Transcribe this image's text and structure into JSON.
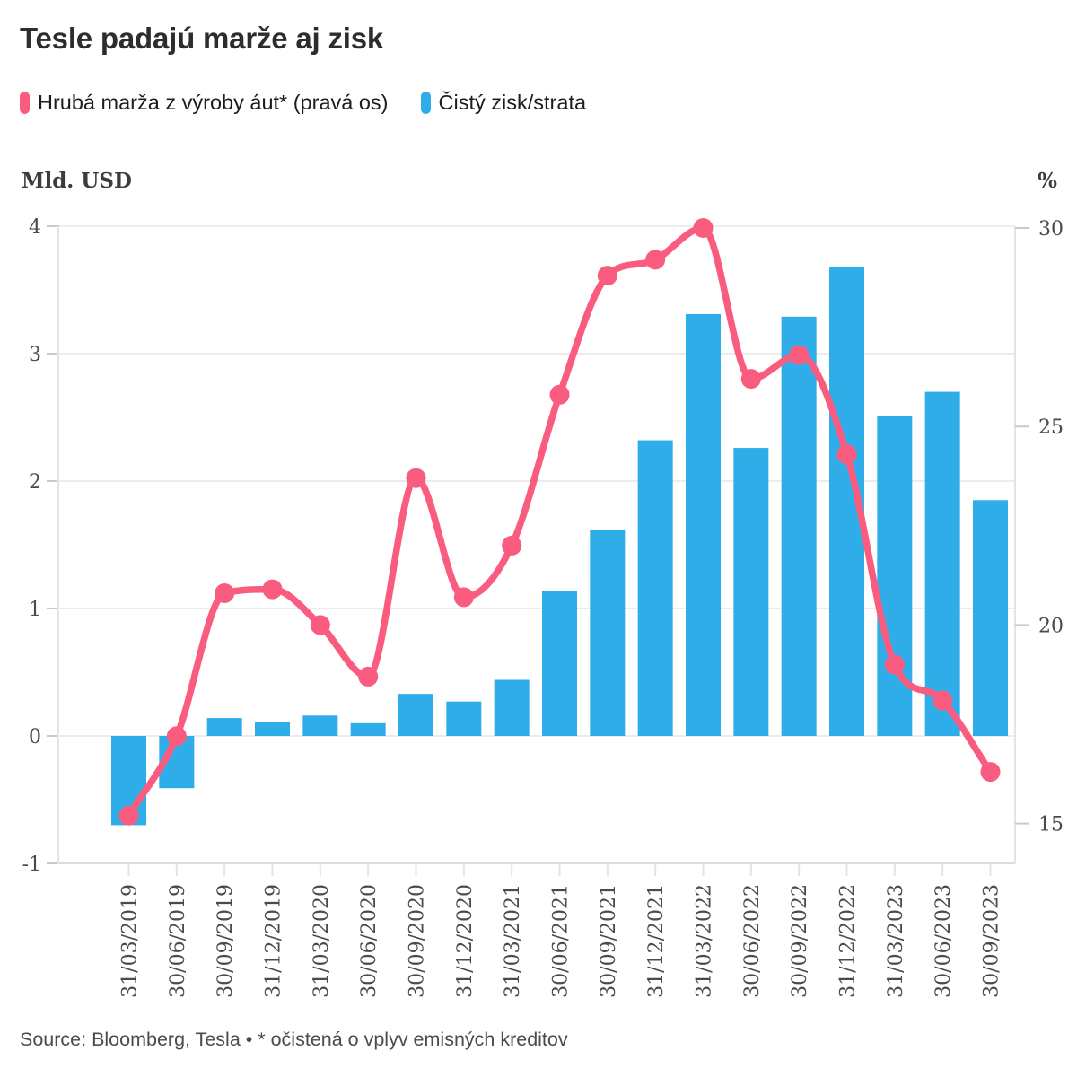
{
  "title": "Tesle padajú marže aj zisk",
  "legend": {
    "items": [
      {
        "label": "Hrubá marža z výroby áut* (pravá os)",
        "color": "#fa5c7f"
      },
      {
        "label": "Čistý zisk/strata",
        "color": "#2eade8"
      }
    ]
  },
  "axes": {
    "left_title": "Mld. USD",
    "right_title": "%"
  },
  "source_line": "Source: Bloomberg, Tesla • * očistená o vplyv emisných kreditov",
  "chart_data": {
    "type": "combo (bar + line)",
    "categories": [
      "31/03/2019",
      "30/06/2019",
      "30/09/2019",
      "31/12/2019",
      "31/03/2020",
      "30/06/2020",
      "30/09/2020",
      "31/12/2020",
      "31/03/2021",
      "30/06/2021",
      "30/09/2021",
      "31/12/2021",
      "31/03/2022",
      "30/06/2022",
      "30/09/2022",
      "31/12/2022",
      "31/03/2023",
      "30/06/2023",
      "30/09/2023"
    ],
    "series": [
      {
        "name": "Čistý zisk/strata",
        "type": "bar",
        "axis": "left",
        "unit": "Mld. USD",
        "color": "#2eade8",
        "values": [
          -0.7,
          -0.41,
          0.14,
          0.11,
          0.16,
          0.1,
          0.33,
          0.27,
          0.44,
          1.14,
          1.62,
          2.32,
          3.31,
          2.26,
          3.29,
          3.68,
          2.51,
          2.7,
          1.85
        ]
      },
      {
        "name": "Hrubá marža z výroby áut* (pravá os)",
        "type": "line",
        "axis": "right",
        "unit": "%",
        "color": "#fa5c7f",
        "values": [
          15.2,
          17.2,
          20.8,
          20.9,
          20.0,
          18.7,
          23.7,
          20.7,
          22.0,
          25.8,
          28.8,
          29.2,
          30.0,
          26.2,
          26.8,
          24.3,
          19.0,
          18.1,
          16.3
        ]
      }
    ],
    "left_axis": {
      "title": "Mld. USD",
      "ticks": [
        4,
        3,
        2,
        1,
        0,
        -1
      ],
      "range": [
        -1,
        4
      ]
    },
    "right_axis": {
      "title": "%",
      "ticks": [
        30,
        25,
        20,
        15
      ],
      "range": [
        15,
        30
      ]
    },
    "grid": "horizontal",
    "legend_position": "top-left",
    "x_tick_rotation": -90,
    "style": {
      "grid_color": "#ececec",
      "axis_line_color": "#e4e4e4",
      "baseline_color": "#dcdcdc",
      "tick_dash_color": "#c9c9c9",
      "tick_text_color": "#4a4a4a"
    }
  }
}
